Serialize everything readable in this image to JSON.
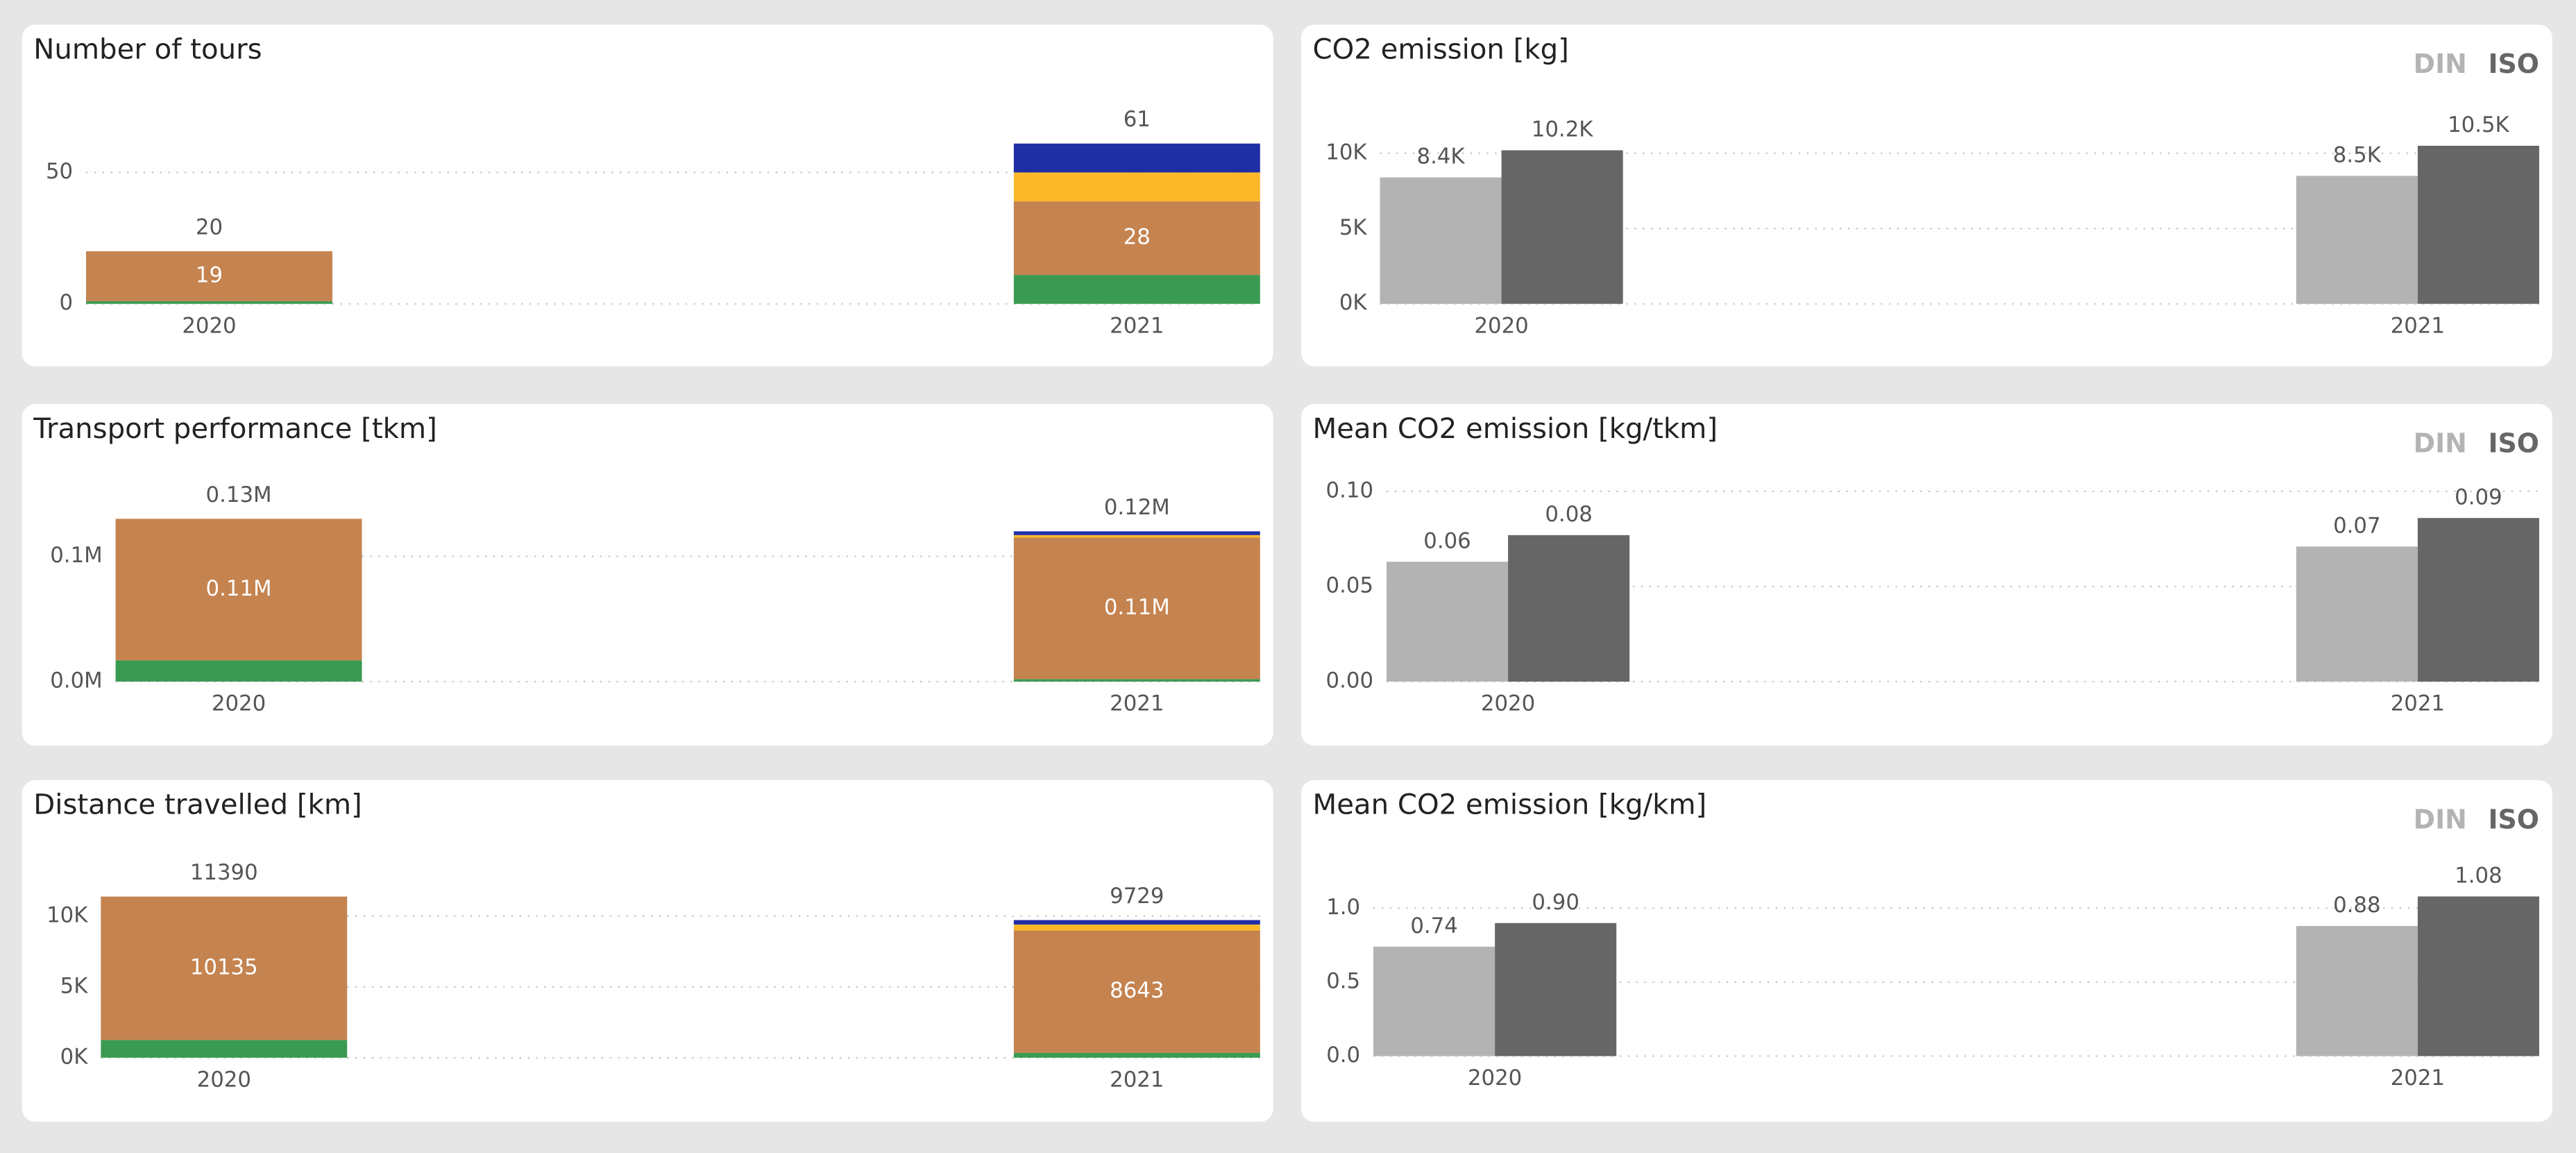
{
  "chart_data": [
    {
      "type": "stacked_bar",
      "title": "Number of tours",
      "categories": [
        "2020",
        "2021"
      ],
      "series": [
        {
          "color": "#3a9a52",
          "values": [
            1,
            11
          ]
        },
        {
          "color": "#c5834f",
          "values": [
            19,
            28
          ],
          "labels": true
        },
        {
          "color": "#fbb829",
          "values": [
            0,
            11
          ]
        },
        {
          "color": "#1f2ea5",
          "values": [
            0,
            11
          ]
        }
      ],
      "totals": [
        20,
        61
      ],
      "ylim": [
        0,
        75
      ],
      "yticks": [
        0,
        50
      ],
      "grid": true
    },
    {
      "type": "grouped_bar",
      "title": "CO2 emission [kg]",
      "categories": [
        "2020",
        "2021"
      ],
      "series": [
        {
          "name": "DIN",
          "color": "#b3b3b3",
          "values": [
            8400,
            8500
          ],
          "value_labels": [
            "8.4K",
            "8.5K"
          ]
        },
        {
          "name": "ISO",
          "color": "#666666",
          "values": [
            10200,
            10500
          ],
          "value_labels": [
            "10.2K",
            "10.5K"
          ]
        }
      ],
      "ylim": [
        0,
        12000
      ],
      "yticks": [
        {
          "value": 0,
          "label": "0K"
        },
        {
          "value": 5000,
          "label": "5K"
        },
        {
          "value": 10000,
          "label": "10K"
        }
      ],
      "grid": true,
      "legend": "top-right"
    },
    {
      "type": "stacked_bar",
      "title": "Transport performance [tkm]",
      "categories": [
        "2020",
        "2021"
      ],
      "series": [
        {
          "color": "#3a9a52",
          "values": [
            17000,
            2000
          ]
        },
        {
          "color": "#c5834f",
          "values": [
            113000,
            113000
          ],
          "labels": true,
          "value_labels": [
            "0.11M",
            "0.11M"
          ]
        },
        {
          "color": "#fbb829",
          "values": [
            0,
            2000
          ]
        },
        {
          "color": "#1f2ea5",
          "values": [
            0,
            3000
          ]
        }
      ],
      "totals": [
        130000,
        120000
      ],
      "totals_labels": [
        "0.13M",
        "0.12M"
      ],
      "ylim": [
        0,
        160000
      ],
      "yticks": [
        {
          "value": 0,
          "label": "0.0M"
        },
        {
          "value": 100000,
          "label": "0.1M"
        }
      ],
      "grid": true
    },
    {
      "type": "grouped_bar",
      "title": "Mean CO2 emission [kg/tkm]",
      "categories": [
        "2020",
        "2021"
      ],
      "series": [
        {
          "name": "DIN",
          "color": "#b3b3b3",
          "values": [
            0.063,
            0.071
          ],
          "value_labels": [
            "0.06",
            "0.07"
          ]
        },
        {
          "name": "ISO",
          "color": "#666666",
          "values": [
            0.077,
            0.086
          ],
          "value_labels": [
            "0.08",
            "0.09"
          ]
        }
      ],
      "ylim": [
        0,
        0.12
      ],
      "yticks": [
        {
          "value": 0,
          "label": "0.00"
        },
        0.05,
        {
          "value": 0.1,
          "label": "0.10"
        }
      ],
      "grid": true,
      "legend": "top-right"
    },
    {
      "type": "stacked_bar",
      "title": "Distance travelled [km]",
      "categories": [
        "2020",
        "2021"
      ],
      "series": [
        {
          "color": "#3a9a52",
          "values": [
            1255,
            350
          ]
        },
        {
          "color": "#c5834f",
          "values": [
            10135,
            8643
          ],
          "labels": true
        },
        {
          "color": "#fbb829",
          "values": [
            0,
            420
          ]
        },
        {
          "color": "#1f2ea5",
          "values": [
            0,
            316
          ]
        }
      ],
      "totals": [
        11390,
        9729
      ],
      "ylim": [
        0,
        13000
      ],
      "yticks": [
        {
          "value": 0,
          "label": "0K"
        },
        {
          "value": 5000,
          "label": "5K"
        },
        {
          "value": 10000,
          "label": "10K"
        }
      ],
      "grid": true
    },
    {
      "type": "grouped_bar",
      "title": "Mean CO2 emission [kg/km]",
      "categories": [
        "2020",
        "2021"
      ],
      "series": [
        {
          "name": "DIN",
          "color": "#b3b3b3",
          "values": [
            0.74,
            0.88
          ]
        },
        {
          "name": "ISO",
          "color": "#666666",
          "values": [
            0.9,
            1.08
          ],
          "value_labels": [
            "0.90",
            "1.08"
          ]
        }
      ],
      "ylim": [
        0,
        1.2
      ],
      "yticks": [
        {
          "value": 0,
          "label": "0.0"
        },
        0.5,
        {
          "value": 1,
          "label": "1.0"
        }
      ],
      "grid": true,
      "legend": "top-right"
    }
  ]
}
